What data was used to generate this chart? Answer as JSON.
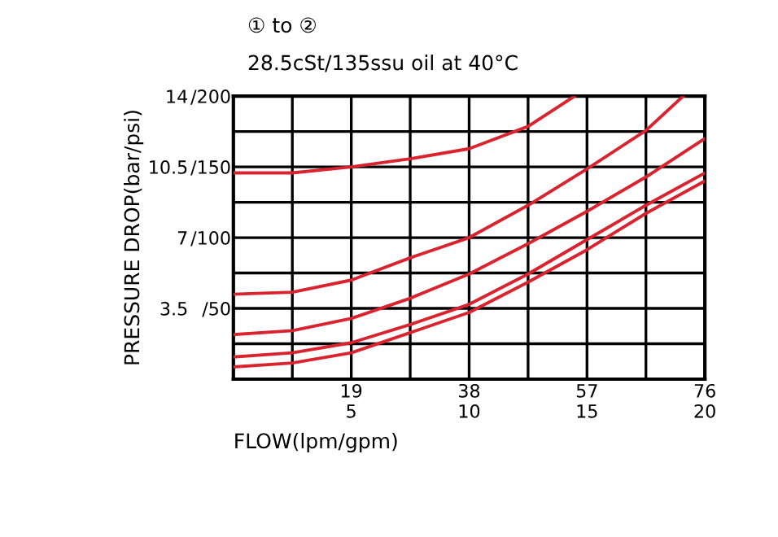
{
  "chart_data": {
    "type": "line",
    "title": "① to ②",
    "subtitle": "28.5cSt/135ssu oil at 40°C",
    "xlabel": "FLOW(lpm/gpm)",
    "ylabel": "PRESSURE DROP(bar/psi)",
    "series": [
      {
        "color": "#d9232e",
        "x": [
          0,
          9.5,
          19,
          28.5,
          38,
          47.5,
          55
        ],
        "values": [
          10.2,
          10.2,
          10.5,
          10.9,
          11.4,
          12.5,
          14
        ]
      },
      {
        "color": "#d9232e",
        "x": [
          0,
          9.5,
          19,
          28.5,
          38,
          47.5,
          57,
          66.5,
          72.5
        ],
        "values": [
          4.2,
          4.3,
          4.9,
          6,
          7,
          8.6,
          10.4,
          12.3,
          14
        ]
      },
      {
        "color": "#d9232e",
        "x": [
          0,
          9.5,
          19,
          28.5,
          38,
          47.5,
          57,
          66.5,
          76
        ],
        "values": [
          2.2,
          2.4,
          3,
          4,
          5.2,
          6.7,
          8.3,
          10,
          11.9
        ]
      },
      {
        "color": "#d9232e",
        "x": [
          0,
          9.5,
          19,
          28.5,
          38,
          47.5,
          57,
          66.5,
          76
        ],
        "values": [
          1.1,
          1.3,
          1.8,
          2.7,
          3.7,
          5.2,
          6.9,
          8.6,
          10.2
        ]
      },
      {
        "color": "#d9232e",
        "x": [
          0,
          9.5,
          19,
          28.5,
          38,
          47.5,
          57,
          66.5,
          76
        ],
        "values": [
          0.6,
          0.8,
          1.3,
          2.3,
          3.3,
          4.8,
          6.4,
          8.2,
          9.8
        ]
      }
    ],
    "xlim": [
      0,
      76
    ],
    "ylim": [
      0,
      14
    ],
    "x2lim": [
      0,
      20
    ],
    "y2lim": [
      0,
      200
    ],
    "xticks": [
      {
        "value": 9.5,
        "label": null
      },
      19,
      {
        "value": 28.5,
        "label": null
      },
      38,
      {
        "value": 47.5,
        "label": null
      },
      57,
      {
        "value": 66.5,
        "label": null
      },
      76
    ],
    "x2ticks": [
      5,
      10,
      15,
      20
    ],
    "yticks": [
      {
        "value": 1.75,
        "label": null
      },
      3.5,
      {
        "value": 5.25,
        "label": null
      },
      7,
      {
        "value": 8.75,
        "label": null
      },
      10.5,
      {
        "value": 12.25,
        "label": null
      },
      14
    ],
    "y2ticks": [
      {
        "value": 50,
        "label": "/50"
      },
      {
        "value": 100,
        "label": "/100"
      },
      {
        "value": 150,
        "label": "/150"
      },
      {
        "value": 200,
        "label": "/200"
      }
    ],
    "grid": true,
    "marker": "none",
    "line_style": "solid"
  }
}
